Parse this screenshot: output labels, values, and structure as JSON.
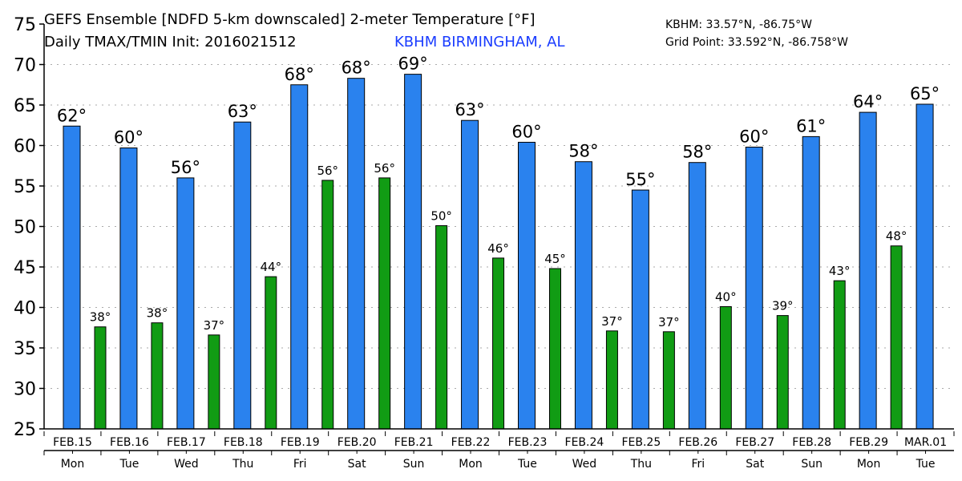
{
  "header": {
    "title_line1": "GEFS Ensemble [NDFD 5-km downscaled] 2-meter Temperature [°F]",
    "title_line2": "Daily TMAX/TMIN Init: 2016021512",
    "station": "KBHM BIRMINGHAM, AL",
    "station_coords": "KBHM: 33.57°N, -86.75°W",
    "grid_point": "Grid Point: 33.592°N, -86.758°W"
  },
  "colors": {
    "tmax": "#2a82ee",
    "tmin": "#119c14",
    "station": "#1a3cff"
  },
  "chart_data": {
    "type": "bar",
    "title": "GEFS Ensemble [NDFD 5-km downscaled] 2-meter Temperature [°F]",
    "xlabel": "",
    "ylabel": "",
    "ylim": [
      25,
      75
    ],
    "yticks": [
      25,
      30,
      35,
      40,
      45,
      50,
      55,
      60,
      65,
      70,
      75
    ],
    "grid": true,
    "categories": [
      "FEB.15",
      "FEB.16",
      "FEB.17",
      "FEB.18",
      "FEB.19",
      "FEB.20",
      "FEB.21",
      "FEB.22",
      "FEB.23",
      "FEB.24",
      "FEB.25",
      "FEB.26",
      "FEB.27",
      "FEB.28",
      "FEB.29",
      "MAR.01"
    ],
    "weekdays": [
      "Mon",
      "Tue",
      "Wed",
      "Thu",
      "Fri",
      "Sat",
      "Sun",
      "Mon",
      "Tue",
      "Wed",
      "Thu",
      "Fri",
      "Sat",
      "Sun",
      "Mon",
      "Tue"
    ],
    "series": [
      {
        "name": "TMAX",
        "values": [
          62.4,
          59.7,
          56.0,
          62.9,
          67.5,
          68.3,
          68.8,
          63.1,
          60.4,
          58.0,
          54.5,
          57.9,
          59.8,
          61.1,
          64.1,
          65.1
        ],
        "labels": [
          "62°",
          "60°",
          "56°",
          "63°",
          "68°",
          "68°",
          "69°",
          "63°",
          "60°",
          "58°",
          "55°",
          "58°",
          "60°",
          "61°",
          "64°",
          "65°"
        ]
      },
      {
        "name": "TMIN",
        "values": [
          37.6,
          38.1,
          36.6,
          43.8,
          55.7,
          56.0,
          50.1,
          46.1,
          44.8,
          37.1,
          37.0,
          40.1,
          39.0,
          43.3,
          47.6,
          null
        ],
        "labels": [
          "38°",
          "38°",
          "37°",
          "44°",
          "56°",
          "56°",
          "50°",
          "46°",
          "45°",
          "37°",
          "37°",
          "40°",
          "39°",
          "43°",
          "48°",
          null
        ]
      }
    ]
  }
}
